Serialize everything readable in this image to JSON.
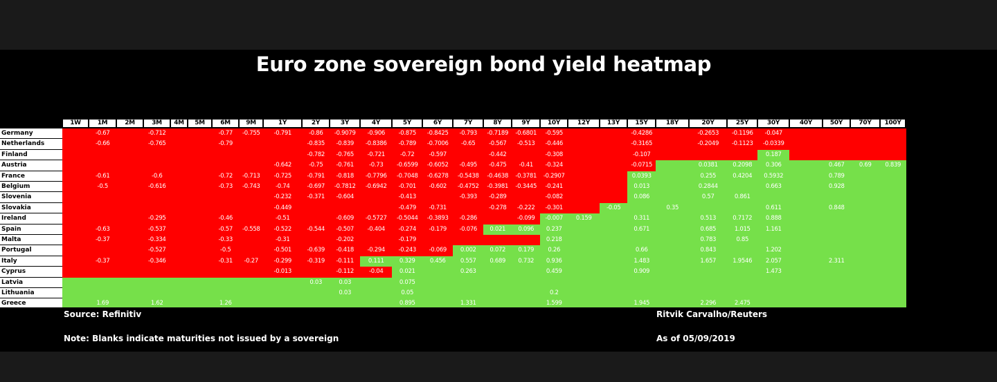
{
  "title": "Euro zone sovereign bond yield heatmap",
  "footer": {
    "source": "Source: Refinitiv",
    "note": "Note: Blanks indicate maturities not issued by a sovereign",
    "credit": "Ritvik Carvalho/Reuters",
    "date": "As of 05/09/2019"
  },
  "colors": {
    "negative": "#ff0000",
    "positive": "#76e04a",
    "header_bg": "#ffffff",
    "background": "#000000"
  },
  "chart_data": {
    "type": "heatmap",
    "title": "Euro zone sovereign bond yield heatmap",
    "x": [
      "1W",
      "1M",
      "2M",
      "3M",
      "4M",
      "5M",
      "6M",
      "9M",
      "1Y",
      "2Y",
      "3Y",
      "4Y",
      "5Y",
      "6Y",
      "7Y",
      "8Y",
      "9Y",
      "10Y",
      "12Y",
      "13Y",
      "15Y",
      "18Y",
      "20Y",
      "25Y",
      "30Y",
      "40Y",
      "50Y",
      "70Y",
      "100Y"
    ],
    "y": [
      "Germany",
      "Netherlands",
      "Finland",
      "Austria",
      "France",
      "Belgium",
      "Slovenia",
      "Slovakia",
      "Ireland",
      "Spain",
      "Malta",
      "Portugal",
      "Italy",
      "Cyprus",
      "Latvia",
      "Lithuania",
      "Greece"
    ],
    "values": [
      [
        null,
        "-0.67",
        null,
        "-0.712",
        null,
        null,
        "-0.77",
        "-0.755",
        "-0.791",
        "-0.86",
        "-0.9079",
        "-0.906",
        "-0.875",
        "-0.8425",
        "-0.793",
        "-0.7189",
        "-0.6801",
        "-0.595",
        null,
        null,
        "-0.4286",
        null,
        "-0.2653",
        "-0.1196",
        "-0.047",
        null,
        null,
        null,
        null
      ],
      [
        null,
        "-0.66",
        null,
        "-0.765",
        null,
        null,
        "-0.79",
        null,
        null,
        "-0.835",
        "-0.839",
        "-0.8386",
        "-0.789",
        "-0.7006",
        "-0.65",
        "-0.567",
        "-0.513",
        "-0.446",
        null,
        null,
        "-0.3165",
        null,
        "-0.2049",
        "-0.1123",
        "-0.0339",
        null,
        null,
        null,
        null
      ],
      [
        null,
        null,
        null,
        null,
        null,
        null,
        null,
        null,
        null,
        "-0.782",
        "-0.765",
        "-0.721",
        "-0.72",
        "-0.597",
        null,
        "-0.442",
        null,
        "-0.308",
        null,
        null,
        "-0.107",
        null,
        null,
        null,
        "0.187",
        null,
        null,
        null,
        null
      ],
      [
        null,
        null,
        null,
        null,
        null,
        null,
        null,
        null,
        "-0.642",
        "-0.75",
        "-0.761",
        "-0.73",
        "-0.6599",
        "-0.6052",
        "-0.495",
        "-0.475",
        "-0.41",
        "-0.324",
        null,
        null,
        "-0.0715",
        null,
        "0.0381",
        "0.2098",
        "0.306",
        null,
        "0.467",
        "0.69",
        "0.839"
      ],
      [
        null,
        "-0.61",
        null,
        "-0.6",
        null,
        null,
        "-0.72",
        "-0.713",
        "-0.725",
        "-0.791",
        "-0.818",
        "-0.7796",
        "-0.7048",
        "-0.6278",
        "-0.5438",
        "-0.4638",
        "-0.3781",
        "-0.2907",
        null,
        null,
        "0.0393",
        null,
        "0.255",
        "0.4204",
        "0.5932",
        null,
        "0.789",
        null,
        null
      ],
      [
        null,
        "-0.5",
        null,
        "-0.616",
        null,
        null,
        "-0.73",
        "-0.743",
        "-0.74",
        "-0.697",
        "-0.7812",
        "-0.6942",
        "-0.701",
        "-0.602",
        "-0.4752",
        "-0.3981",
        "-0.3445",
        "-0.241",
        null,
        null,
        "0.013",
        null,
        "0.2844",
        null,
        "0.663",
        null,
        "0.928",
        null,
        null
      ],
      [
        null,
        null,
        null,
        null,
        null,
        null,
        null,
        null,
        "-0.232",
        "-0.371",
        "-0.604",
        null,
        "-0.413",
        null,
        "-0.393",
        "-0.289",
        null,
        "-0.082",
        null,
        null,
        "0.086",
        null,
        "0.57",
        "0.861",
        null,
        null,
        null,
        null,
        null
      ],
      [
        null,
        null,
        null,
        null,
        null,
        null,
        null,
        null,
        "-0.449",
        null,
        null,
        null,
        "-0.479",
        "-0.731",
        null,
        "-0.278",
        "-0.222",
        "-0.301",
        null,
        "-0.05",
        null,
        "0.35",
        null,
        null,
        "0.611",
        null,
        "0.848",
        null,
        null
      ],
      [
        null,
        null,
        null,
        "-0.295",
        null,
        null,
        "-0.46",
        null,
        "-0.51",
        null,
        "-0.609",
        "-0.5727",
        "-0.5044",
        "-0.3893",
        "-0.286",
        null,
        "-0.099",
        "-0.007",
        "0.159",
        null,
        "0.311",
        null,
        "0.513",
        "0.7172",
        "0.888",
        null,
        null,
        null,
        null
      ],
      [
        null,
        "-0.63",
        null,
        "-0.537",
        null,
        null,
        "-0.57",
        "-0.558",
        "-0.522",
        "-0.544",
        "-0.507",
        "-0.404",
        "-0.274",
        "-0.179",
        "-0.076",
        "0.021",
        "0.096",
        "0.237",
        null,
        null,
        "0.671",
        null,
        "0.685",
        "1.015",
        "1.161",
        null,
        null,
        null,
        null
      ],
      [
        null,
        "-0.37",
        null,
        "-0.334",
        null,
        null,
        "-0.33",
        null,
        "-0.31",
        null,
        "-0.202",
        null,
        "-0.179",
        null,
        null,
        null,
        null,
        "0.218",
        null,
        null,
        null,
        null,
        "0.783",
        "0.85",
        null,
        null,
        null,
        null,
        null
      ],
      [
        null,
        null,
        null,
        "-0.527",
        null,
        null,
        "-0.5",
        null,
        "-0.501",
        "-0.639",
        "-0.418",
        "-0.294",
        "-0.243",
        "-0.069",
        "0.002",
        "0.072",
        "0.179",
        "0.26",
        null,
        null,
        "0.66",
        null,
        "0.843",
        null,
        "1.202",
        null,
        null,
        null,
        null
      ],
      [
        null,
        "-0.37",
        null,
        "-0.346",
        null,
        null,
        "-0.31",
        "-0.27",
        "-0.299",
        "-0.319",
        "-0.111",
        "0.111",
        "0.329",
        "0.456",
        "0.557",
        "0.689",
        "0.732",
        "0.936",
        null,
        null,
        "1.483",
        null,
        "1.657",
        "1.9546",
        "2.057",
        null,
        "2.311",
        null,
        null
      ],
      [
        null,
        null,
        null,
        null,
        null,
        null,
        null,
        null,
        "-0.013",
        null,
        "-0.112",
        "-0.04",
        "0.021",
        null,
        "0.263",
        null,
        null,
        "0.459",
        null,
        null,
        "0.909",
        null,
        null,
        null,
        "1.473",
        null,
        null,
        null,
        null
      ],
      [
        null,
        null,
        null,
        null,
        null,
        null,
        null,
        null,
        null,
        "0.03",
        "0.03",
        null,
        "0.075",
        null,
        null,
        null,
        null,
        null,
        null,
        null,
        null,
        null,
        null,
        null,
        null,
        null,
        null,
        null,
        null
      ],
      [
        null,
        null,
        null,
        null,
        null,
        null,
        null,
        null,
        null,
        null,
        "0.03",
        null,
        "0.05",
        null,
        null,
        null,
        null,
        "0.2",
        null,
        null,
        null,
        null,
        null,
        null,
        null,
        null,
        null,
        null,
        null
      ],
      [
        null,
        "1.69",
        null,
        "1.62",
        null,
        null,
        "1.26",
        null,
        null,
        null,
        null,
        null,
        "0.895",
        null,
        "1.331",
        null,
        null,
        "1.599",
        null,
        null,
        "1.945",
        null,
        "2.296",
        "2.475",
        null,
        null,
        null,
        null,
        null
      ]
    ],
    "fill": [
      "RRRRRRRRRRRRRRRRRRRRRRRRRRRRR",
      "RRRRRRRRRRRRRRRRRRRRRRRRRRRRR",
      "RRRRRRRRRRRRRRRRRRRRRRRRGRRRR",
      "RRRRRRRRRRRRRRRRRRRRRGGGGGGGG",
      "RRRRRRRRRRRRRRRRRRRRGGGGGGGGG",
      "RRRRRRRRRRRRRRRRRRRRGGGGGGGGG",
      "RRRRRRRRRRRRRRRRRRRRGGGGGGGGG",
      "RRRRRRRRRRRRRRRRRRRGGGGGGGGGG",
      "RRRRRRRRRRRRRRRRRGGGGGGGGGGGG",
      "RRRRRRRRRRRRRRRGGGGGGGGGGGGGG",
      "RRRRRRRRRRRRRRRRRGGGGGGGGGGGG",
      "RRRRRRRRRRRRRRGGGGGGGGGGGGGGG",
      "RRRRRRRRRRRGGGGGGGGGGGGGGGGGG",
      "RRRRRRRRRRRRGGGGGGGGGGGGGGGGG",
      "GGGGGGGGGGGGGGGGGGGGGGGGGGGGG",
      "GGGGGGGGGGGGGGGGGGGGGGGGGGGGG",
      "GGGGGGGGGGGGGGGGGGGGGGGGGGGGG"
    ]
  }
}
